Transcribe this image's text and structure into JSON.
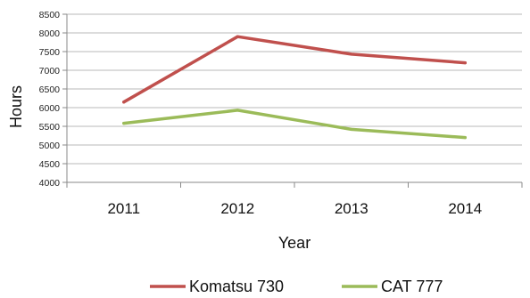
{
  "chart_data": {
    "type": "line",
    "categories": [
      "2011",
      "2012",
      "2013",
      "2014"
    ],
    "series": [
      {
        "name": "Komatsu 730",
        "values": [
          6150,
          7900,
          7430,
          7200
        ],
        "color": "#c0504d"
      },
      {
        "name": "CAT 777",
        "values": [
          5580,
          5930,
          5420,
          5200
        ],
        "color": "#9bbb59"
      }
    ],
    "xlabel": "Year",
    "ylabel": "Hours",
    "ylim": [
      4000,
      8500
    ],
    "y_ticks": [
      "4000",
      "4500",
      "5000",
      "5500",
      "6000",
      "6500",
      "7000",
      "7500",
      "8000",
      "8500"
    ],
    "grid": true,
    "legend_position": "bottom"
  }
}
